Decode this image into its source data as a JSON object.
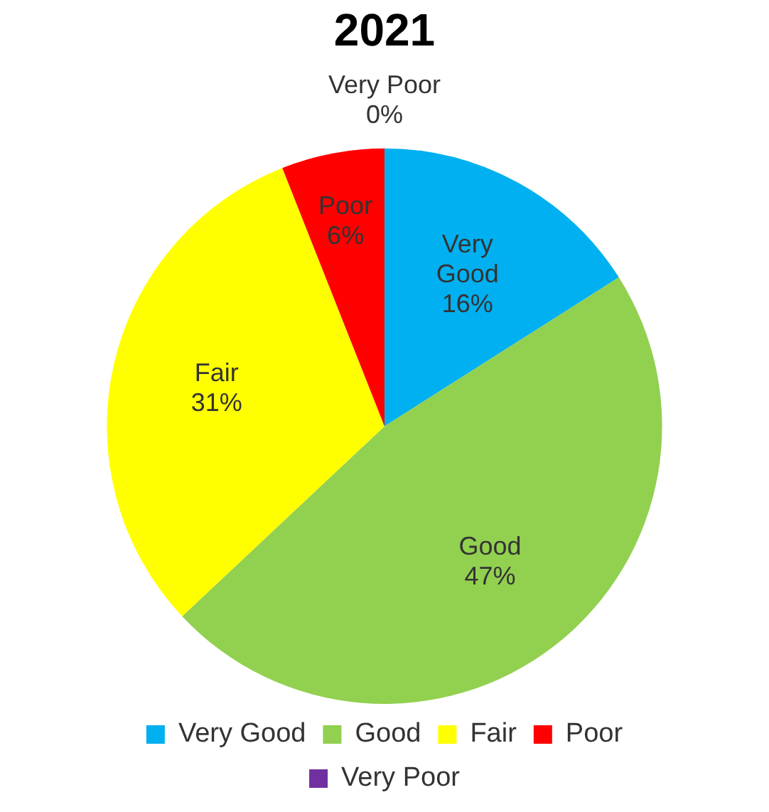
{
  "chart_data": {
    "type": "pie",
    "title": "2021",
    "categories": [
      "Very Good",
      "Good",
      "Fair",
      "Poor",
      "Very Poor"
    ],
    "values": [
      16,
      47,
      31,
      6,
      0
    ],
    "colors": [
      "#00b0f0",
      "#92d050",
      "#ffff00",
      "#ff0000",
      "#7030a0"
    ],
    "value_labels": [
      "16%",
      "47%",
      "31%",
      "6%",
      "0%"
    ],
    "legend": "bottom"
  }
}
